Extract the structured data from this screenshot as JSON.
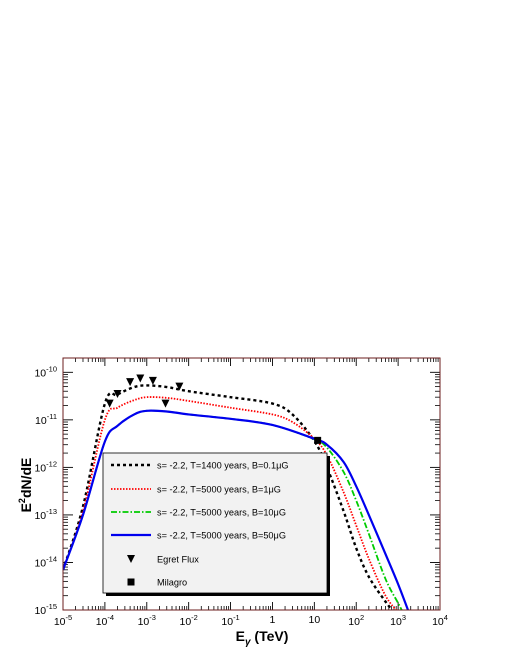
{
  "chart_data": {
    "type": "line",
    "title": "",
    "xlabel": {
      "main": "E",
      "sub": "γ",
      "unit": " (TeV)"
    },
    "ylabel": {
      "prefix": "E",
      "sup": "2",
      "rest": "dN/dE"
    },
    "xscale": "log",
    "yscale": "log",
    "xlim": [
      1e-05,
      10000.0
    ],
    "ylim": [
      1e-15,
      2e-10
    ],
    "grid": false,
    "frame_color": "#6b1e1e",
    "legend_placement": "lower-left",
    "x_ticks": [
      {
        "exp": "-5",
        "value": 1e-05
      },
      {
        "exp": "-4",
        "value": 0.0001
      },
      {
        "exp": "-3",
        "value": 0.001
      },
      {
        "exp": "-2",
        "value": 0.01
      },
      {
        "exp": "-1",
        "value": 0.1
      },
      {
        "plain": "1",
        "value": 1
      },
      {
        "plain": "10",
        "value": 10
      },
      {
        "exp": "2",
        "value": 100
      },
      {
        "exp": "3",
        "value": 1000
      },
      {
        "exp": "4",
        "value": 10000
      }
    ],
    "y_ticks": [
      {
        "exp": "-15",
        "value": 1e-15
      },
      {
        "exp": "-14",
        "value": 1e-14
      },
      {
        "exp": "-13",
        "value": 1e-13
      },
      {
        "exp": "-12",
        "value": 1e-12
      },
      {
        "exp": "-11",
        "value": 1e-11
      },
      {
        "exp": "-10",
        "value": 1e-10
      }
    ],
    "series": [
      {
        "name": "s= -2.2, T=1400 years, B=0.1μG",
        "legend": {
          "pre": "s= -2.2, T=1400 years, B=0.1",
          "mu": "μ",
          "post": "G"
        },
        "color": "#000000",
        "dash": "3,3",
        "width": 2.4,
        "x": [
          1e-05,
          3e-05,
          0.0001,
          0.0002,
          0.0005,
          0.001,
          0.003,
          0.01,
          0.1,
          1,
          3,
          10,
          20,
          50,
          100,
          200,
          500,
          800
        ],
        "y": [
          7e-15,
          1.5e-13,
          2.2e-11,
          3.4e-11,
          4.9e-11,
          5.3e-11,
          4.9e-11,
          4e-11,
          3e-11,
          2.2e-11,
          1.3e-11,
          3.6e-12,
          1e-12,
          1.2e-13,
          2e-14,
          5e-15,
          1.5e-15,
          9e-16
        ]
      },
      {
        "name": "s= -2.2, T=5000 years, B=1μG",
        "legend": {
          "pre": "s= -2.2, T=5000 years, B=1",
          "mu": "μ",
          "post": "G"
        },
        "color": "#ff0000",
        "dash": "1.5,1.5",
        "width": 1.8,
        "x": [
          1e-05,
          3e-05,
          0.0001,
          0.0002,
          0.0005,
          0.001,
          0.003,
          0.01,
          0.1,
          1,
          3,
          10,
          20,
          50,
          100,
          200,
          500,
          1000
        ],
        "y": [
          7e-15,
          1.2e-13,
          1e-11,
          1.8e-11,
          2.6e-11,
          3e-11,
          2.9e-11,
          2.5e-11,
          1.8e-11,
          1.3e-11,
          9e-12,
          4e-12,
          1.8e-12,
          3e-13,
          6e-14,
          1.2e-14,
          2e-15,
          9e-16
        ]
      },
      {
        "name": "s= -2.2, T=5000 years, B=10μG",
        "legend": {
          "pre": "s= -2.2, T=5000 years, B=10",
          "mu": "μ",
          "post": "G"
        },
        "color": "#00cc00",
        "dash": "6,2,1.5,2",
        "width": 1.8,
        "x": [
          1e-05,
          3e-05,
          0.0001,
          0.0002,
          0.0005,
          0.001,
          0.003,
          0.01,
          0.1,
          1,
          10,
          20,
          50,
          100,
          200,
          500,
          1000,
          1300
        ],
        "y": [
          7e-15,
          1e-13,
          3.5e-12,
          7.5e-12,
          1.3e-11,
          1.55e-11,
          1.5e-11,
          1.3e-11,
          1.05e-11,
          7.8e-12,
          3.9e-12,
          2.6e-12,
          8e-13,
          2e-13,
          4e-14,
          4.5e-15,
          1.4e-15,
          9e-16
        ]
      },
      {
        "name": "s= -2.2, T=5000 years, B=50μG",
        "legend": {
          "pre": "s= -2.2, T=5000 years, B=50",
          "mu": "μ",
          "post": "G"
        },
        "color": "#0000ee",
        "dash": "",
        "width": 2.2,
        "x": [
          1e-05,
          3e-05,
          0.0001,
          0.0002,
          0.0005,
          0.001,
          0.003,
          0.01,
          0.1,
          1,
          10,
          20,
          50,
          100,
          200,
          500,
          1000,
          1800
        ],
        "y": [
          7e-15,
          1e-13,
          3.5e-12,
          7.5e-12,
          1.3e-11,
          1.55e-11,
          1.5e-11,
          1.3e-11,
          1.05e-11,
          7.8e-12,
          4e-12,
          3e-12,
          1.3e-12,
          4e-13,
          1e-13,
          1.5e-14,
          3.5e-15,
          9e-16
        ]
      }
    ],
    "egret_flux": {
      "name": "Egret Flux",
      "marker": "inverted-triangle",
      "color": "#000000",
      "x": [
        0.00013,
        0.0002,
        0.0004,
        0.0007,
        0.0014,
        0.0028,
        0.006
      ],
      "y": [
        2.2e-11,
        3.5e-11,
        6.2e-11,
        7.4e-11,
        6.6e-11,
        2.2e-11,
        5e-11
      ]
    },
    "milagro": {
      "name": "Milagro",
      "marker": "square",
      "color": "#000000",
      "x": [
        12
      ],
      "y": [
        3.7e-12
      ]
    }
  }
}
